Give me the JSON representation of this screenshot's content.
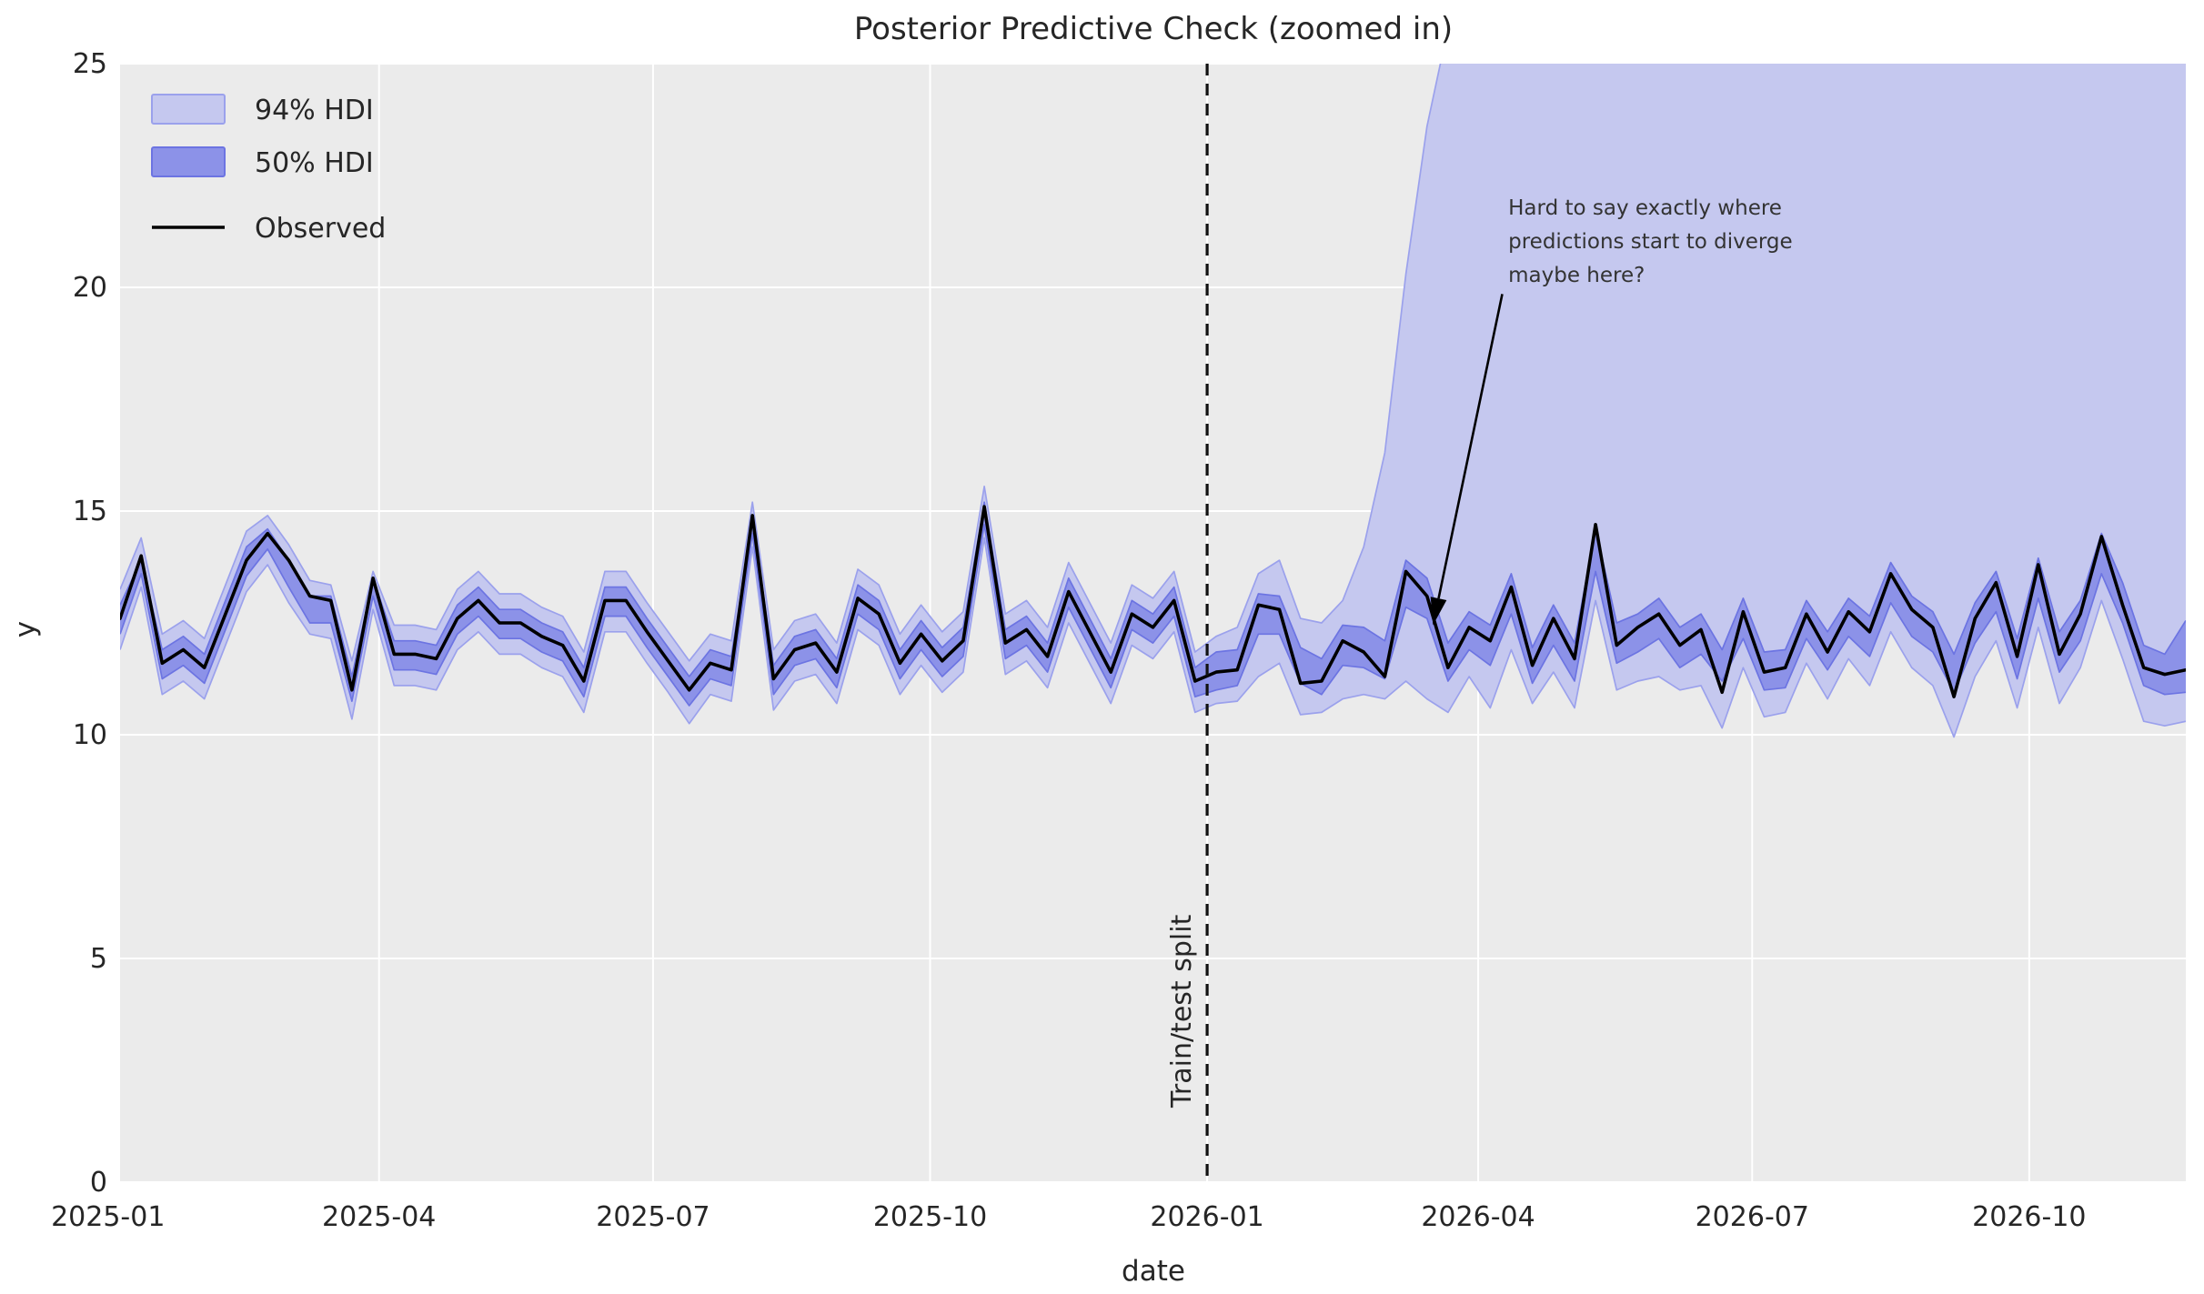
{
  "title": "Posterior Predictive Check (zoomed in)",
  "axes": {
    "xlabel": "date",
    "ylabel": "y",
    "y_ticks": [
      0,
      5,
      10,
      15,
      20,
      25
    ],
    "x_tick_labels": [
      "2025-01",
      "2025-04",
      "2025-07",
      "2025-10",
      "2026-01",
      "2026-04",
      "2026-07",
      "2026-10"
    ],
    "x_tick_dates": [
      "2025-01-01",
      "2025-04-01",
      "2025-07-01",
      "2025-10-01",
      "2026-01-01",
      "2026-04-01",
      "2026-07-01",
      "2026-10-01"
    ]
  },
  "legend": {
    "items": [
      {
        "label": "94% HDI",
        "kind": "patch-light"
      },
      {
        "label": "50% HDI",
        "kind": "patch-dark"
      },
      {
        "label": "Observed",
        "kind": "line"
      }
    ]
  },
  "split": {
    "label": "Train/test split",
    "date": "2026-01-01"
  },
  "annotation": {
    "lines": [
      "Hard to say exactly where",
      "predictions start to diverge",
      "maybe here?"
    ],
    "text_anchor": {
      "date": "2026-04-11",
      "y": 22.2
    },
    "arrow_from": {
      "date": "2026-04-09",
      "y": 19.85
    },
    "arrow_tip": {
      "date": "2026-03-17",
      "y": 12.45
    }
  },
  "colors": {
    "plot_bg": "#ebebeb",
    "grid": "#ffffff",
    "hdi94_fill": "#c5c8ef",
    "hdi94_edge": "#9ba1ec",
    "hdi50_fill": "#8c92e8",
    "hdi50_edge": "#6c74e2",
    "observed": "#000000",
    "split_line": "#111111",
    "text": "#262626"
  },
  "chart_data": {
    "type": "line",
    "title": "Posterior Predictive Check (zoomed in)",
    "xlabel": "date",
    "ylabel": "y",
    "ylim": [
      0,
      25
    ],
    "grid": true,
    "legend_position": "upper-left",
    "x": [
      "2025-01-05",
      "2025-01-12",
      "2025-01-19",
      "2025-01-26",
      "2025-02-02",
      "2025-02-09",
      "2025-02-16",
      "2025-02-23",
      "2025-03-02",
      "2025-03-09",
      "2025-03-16",
      "2025-03-23",
      "2025-03-30",
      "2025-04-06",
      "2025-04-13",
      "2025-04-20",
      "2025-04-27",
      "2025-05-04",
      "2025-05-11",
      "2025-05-18",
      "2025-05-25",
      "2025-06-01",
      "2025-06-08",
      "2025-06-15",
      "2025-06-22",
      "2025-06-29",
      "2025-07-06",
      "2025-07-13",
      "2025-07-20",
      "2025-07-27",
      "2025-08-03",
      "2025-08-10",
      "2025-08-17",
      "2025-08-24",
      "2025-08-31",
      "2025-09-07",
      "2025-09-14",
      "2025-09-21",
      "2025-09-28",
      "2025-10-05",
      "2025-10-12",
      "2025-10-19",
      "2025-10-26",
      "2025-11-02",
      "2025-11-09",
      "2025-11-16",
      "2025-11-23",
      "2025-11-30",
      "2025-12-07",
      "2025-12-14",
      "2025-12-21",
      "2025-12-28",
      "2026-01-04",
      "2026-01-11",
      "2026-01-18",
      "2026-01-25",
      "2026-02-01",
      "2026-02-08",
      "2026-02-15",
      "2026-02-22",
      "2026-03-01",
      "2026-03-08",
      "2026-03-15",
      "2026-03-22",
      "2026-03-29",
      "2026-04-05",
      "2026-04-12",
      "2026-04-19",
      "2026-04-26",
      "2026-05-03",
      "2026-05-10",
      "2026-05-17",
      "2026-05-24",
      "2026-05-31",
      "2026-06-07",
      "2026-06-14",
      "2026-06-21",
      "2026-06-28",
      "2026-07-05",
      "2026-07-12",
      "2026-07-19",
      "2026-07-26",
      "2026-08-02",
      "2026-08-09",
      "2026-08-16",
      "2026-08-23",
      "2026-08-30",
      "2026-09-06",
      "2026-09-13",
      "2026-09-20",
      "2026-09-27",
      "2026-10-04",
      "2026-10-11",
      "2026-10-18",
      "2026-10-25",
      "2026-11-01",
      "2026-11-08",
      "2026-11-15",
      "2026-11-22"
    ],
    "series": [
      {
        "name": "Observed",
        "values": [
          12.6,
          14.0,
          11.6,
          11.9,
          11.5,
          12.7,
          13.9,
          14.5,
          13.9,
          13.1,
          13.0,
          11.0,
          13.5,
          11.8,
          11.8,
          11.7,
          12.6,
          13.0,
          12.5,
          12.5,
          12.2,
          12.0,
          11.2,
          13.0,
          13.0,
          12.3,
          11.65,
          11.0,
          11.6,
          11.45,
          14.9,
          11.25,
          11.9,
          12.05,
          11.4,
          13.05,
          12.7,
          11.6,
          12.25,
          11.65,
          12.1,
          15.1,
          12.05,
          12.35,
          11.75,
          13.2,
          12.3,
          11.4,
          12.7,
          12.4,
          13.0,
          11.2,
          11.4,
          11.45,
          12.9,
          12.8,
          11.15,
          11.2,
          12.1,
          11.85,
          11.3,
          13.65,
          13.1,
          11.5,
          12.4,
          12.1,
          13.3,
          11.55,
          12.6,
          11.7,
          14.7,
          12.0,
          12.4,
          12.7,
          12.0,
          12.35,
          10.95,
          12.75,
          11.4,
          11.5,
          12.7,
          11.85,
          12.75,
          12.3,
          13.6,
          12.8,
          12.4,
          10.85,
          12.6,
          13.4,
          11.75,
          13.8,
          11.8,
          12.7,
          14.43,
          12.9,
          11.5,
          11.35,
          11.45
        ]
      },
      {
        "name": "94% HDI upper",
        "values": [
          13.25,
          14.4,
          12.25,
          12.55,
          12.15,
          13.35,
          14.55,
          14.9,
          14.25,
          13.45,
          13.35,
          11.65,
          13.65,
          12.45,
          12.45,
          12.35,
          13.25,
          13.65,
          13.15,
          13.15,
          12.85,
          12.65,
          11.85,
          13.65,
          13.65,
          12.95,
          12.3,
          11.65,
          12.25,
          12.1,
          15.2,
          11.9,
          12.55,
          12.7,
          12.05,
          13.7,
          13.35,
          12.25,
          12.9,
          12.3,
          12.75,
          15.55,
          12.7,
          13.0,
          12.4,
          13.85,
          12.95,
          12.05,
          13.35,
          13.05,
          13.65,
          11.85,
          12.2,
          12.4,
          13.6,
          13.9,
          12.6,
          12.5,
          13.0,
          14.2,
          16.3,
          20.3,
          23.6,
          25.8,
          27,
          27,
          27,
          27,
          27,
          27,
          27,
          27,
          27,
          27,
          27,
          27,
          27,
          27,
          27,
          27,
          27,
          27,
          27,
          27,
          27,
          27,
          27,
          27,
          27,
          27,
          27,
          27,
          27,
          27,
          27,
          27,
          27,
          27,
          27
        ]
      },
      {
        "name": "94% HDI lower",
        "values": [
          11.9,
          13.3,
          10.9,
          11.2,
          10.8,
          12.0,
          13.2,
          13.8,
          12.95,
          12.25,
          12.15,
          10.35,
          12.8,
          11.1,
          11.1,
          11.0,
          11.9,
          12.3,
          11.8,
          11.8,
          11.5,
          11.3,
          10.5,
          12.3,
          12.3,
          11.6,
          10.95,
          10.25,
          10.9,
          10.75,
          14.2,
          10.55,
          11.2,
          11.35,
          10.7,
          12.35,
          12.0,
          10.9,
          11.55,
          10.95,
          11.4,
          14.4,
          11.35,
          11.65,
          11.05,
          12.5,
          11.6,
          10.7,
          12.0,
          11.7,
          12.3,
          10.5,
          10.7,
          10.75,
          11.3,
          11.6,
          10.45,
          10.5,
          10.8,
          10.9,
          10.8,
          11.2,
          10.8,
          10.5,
          11.3,
          10.6,
          11.9,
          10.7,
          11.4,
          10.6,
          13.0,
          11.0,
          11.2,
          11.3,
          11.0,
          11.1,
          10.15,
          11.5,
          10.4,
          10.5,
          11.6,
          10.8,
          11.7,
          11.1,
          12.3,
          11.5,
          11.1,
          9.95,
          11.3,
          12.1,
          10.6,
          12.4,
          10.7,
          11.5,
          13.0,
          11.7,
          10.3,
          10.2,
          10.3
        ]
      },
      {
        "name": "50% HDI upper",
        "values": [
          12.9,
          13.9,
          11.9,
          12.2,
          11.8,
          13.0,
          14.2,
          14.6,
          13.9,
          13.1,
          13.1,
          11.3,
          13.5,
          12.1,
          12.1,
          12.0,
          12.9,
          13.3,
          12.8,
          12.8,
          12.5,
          12.3,
          11.5,
          13.3,
          13.3,
          12.6,
          11.95,
          11.3,
          11.9,
          11.75,
          14.85,
          11.55,
          12.2,
          12.35,
          11.7,
          13.35,
          13.0,
          11.9,
          12.55,
          11.95,
          12.4,
          15.2,
          12.35,
          12.65,
          12.05,
          13.5,
          12.6,
          11.7,
          13.0,
          12.7,
          13.3,
          11.5,
          11.85,
          11.9,
          13.15,
          13.1,
          11.95,
          11.7,
          12.45,
          12.4,
          12.1,
          13.9,
          13.5,
          12.05,
          12.75,
          12.45,
          13.6,
          11.95,
          12.9,
          12.05,
          14.6,
          12.5,
          12.7,
          13.05,
          12.4,
          12.7,
          11.9,
          13.05,
          11.85,
          11.9,
          13.0,
          12.3,
          13.05,
          12.65,
          13.85,
          13.1,
          12.75,
          11.8,
          12.95,
          13.65,
          12.15,
          13.95,
          12.3,
          13.0,
          14.5,
          13.4,
          12.0,
          11.8,
          12.55
        ]
      },
      {
        "name": "50% HDI lower",
        "values": [
          12.25,
          13.6,
          11.25,
          11.55,
          11.15,
          12.35,
          13.55,
          14.15,
          13.3,
          12.5,
          12.5,
          10.75,
          13.1,
          11.45,
          11.45,
          11.35,
          12.25,
          12.65,
          12.15,
          12.15,
          11.85,
          11.65,
          10.85,
          12.65,
          12.65,
          11.95,
          11.3,
          10.65,
          11.25,
          11.1,
          14.5,
          10.9,
          11.55,
          11.7,
          11.05,
          12.7,
          12.35,
          11.25,
          11.9,
          11.3,
          11.75,
          14.7,
          11.7,
          12.0,
          11.4,
          12.85,
          11.95,
          11.05,
          12.35,
          12.05,
          12.65,
          10.85,
          11.0,
          11.1,
          12.25,
          12.25,
          11.15,
          10.9,
          11.55,
          11.5,
          11.25,
          12.85,
          12.6,
          11.2,
          11.9,
          11.55,
          12.7,
          11.15,
          12.0,
          11.2,
          13.65,
          11.6,
          11.85,
          12.15,
          11.5,
          11.8,
          11.2,
          12.15,
          11.0,
          11.05,
          12.15,
          11.45,
          12.2,
          11.75,
          12.95,
          12.2,
          11.85,
          10.95,
          12.05,
          12.75,
          11.25,
          13.05,
          11.4,
          12.1,
          13.6,
          12.5,
          11.1,
          10.9,
          10.95
        ]
      }
    ]
  }
}
